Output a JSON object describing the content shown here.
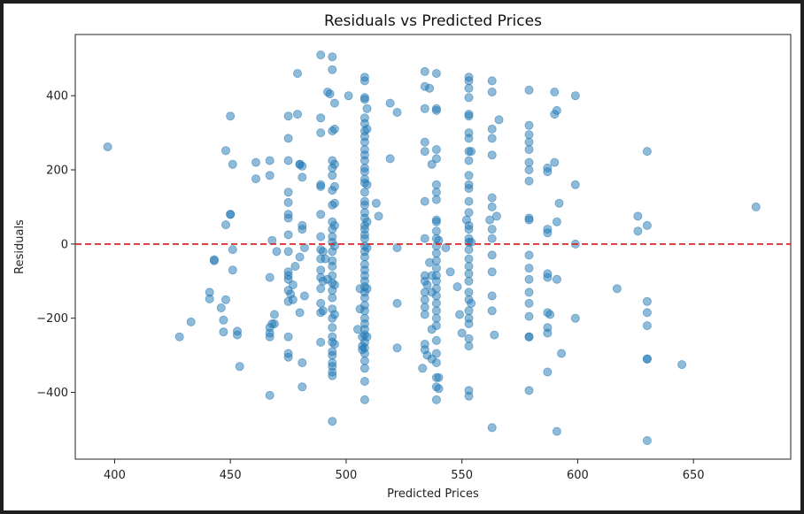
{
  "chart_data": {
    "type": "scatter",
    "title": "Residuals vs Predicted Prices",
    "xlabel": "Predicted Prices",
    "ylabel": "Residuals",
    "xlim": [
      383,
      692
    ],
    "ylim": [
      -580,
      565
    ],
    "xticks": [
      400,
      450,
      500,
      550,
      600,
      650
    ],
    "yticks": [
      -400,
      -200,
      0,
      200,
      400
    ],
    "grid": false,
    "reference_line": {
      "y": 0,
      "color": "#d62728",
      "style": "dashed"
    },
    "point_color": "#1f77b4",
    "points": [
      [
        397,
        262
      ],
      [
        428,
        -250
      ],
      [
        433,
        -210
      ],
      [
        441,
        -130
      ],
      [
        441,
        -148
      ],
      [
        443,
        -45
      ],
      [
        443,
        -42
      ],
      [
        446,
        -172
      ],
      [
        447,
        -237
      ],
      [
        447,
        -205
      ],
      [
        448,
        -150
      ],
      [
        448,
        52
      ],
      [
        448,
        252
      ],
      [
        450,
        80
      ],
      [
        450,
        80
      ],
      [
        450,
        345
      ],
      [
        451,
        215
      ],
      [
        451,
        -15
      ],
      [
        451,
        -70
      ],
      [
        453,
        -235
      ],
      [
        453,
        -245
      ],
      [
        454,
        -330
      ],
      [
        461,
        220
      ],
      [
        461,
        176
      ],
      [
        467,
        225
      ],
      [
        467,
        185
      ],
      [
        467,
        -90
      ],
      [
        467,
        -225
      ],
      [
        467,
        -240
      ],
      [
        467,
        -250
      ],
      [
        467,
        -408
      ],
      [
        468,
        -215
      ],
      [
        468,
        10
      ],
      [
        469,
        -190
      ],
      [
        469,
        -215
      ],
      [
        470,
        -20
      ],
      [
        475,
        345
      ],
      [
        475,
        285
      ],
      [
        475,
        225
      ],
      [
        475,
        140
      ],
      [
        475,
        112
      ],
      [
        475,
        80
      ],
      [
        475,
        70
      ],
      [
        475,
        25
      ],
      [
        475,
        -20
      ],
      [
        475,
        -75
      ],
      [
        475,
        -85
      ],
      [
        475,
        -95
      ],
      [
        475,
        -125
      ],
      [
        475,
        -155
      ],
      [
        475,
        -250
      ],
      [
        475,
        -295
      ],
      [
        475,
        -305
      ],
      [
        476,
        -135
      ],
      [
        477,
        -110
      ],
      [
        477,
        -150
      ],
      [
        478,
        -60
      ],
      [
        479,
        350
      ],
      [
        479,
        460
      ],
      [
        480,
        215
      ],
      [
        480,
        215
      ],
      [
        480,
        -35
      ],
      [
        480,
        -185
      ],
      [
        481,
        -320
      ],
      [
        481,
        -385
      ],
      [
        481,
        50
      ],
      [
        481,
        40
      ],
      [
        481,
        180
      ],
      [
        481,
        210
      ],
      [
        482,
        -10
      ],
      [
        482,
        -140
      ],
      [
        489,
        510
      ],
      [
        489,
        340
      ],
      [
        489,
        300
      ],
      [
        489,
        160
      ],
      [
        489,
        155
      ],
      [
        489,
        80
      ],
      [
        489,
        20
      ],
      [
        489,
        -15
      ],
      [
        489,
        -40
      ],
      [
        489,
        -70
      ],
      [
        489,
        -90
      ],
      [
        489,
        -120
      ],
      [
        489,
        -160
      ],
      [
        489,
        -185
      ],
      [
        489,
        -265
      ],
      [
        490,
        -180
      ],
      [
        490,
        -100
      ],
      [
        490,
        -20
      ],
      [
        491,
        -40
      ],
      [
        492,
        410
      ],
      [
        492,
        -95
      ],
      [
        493,
        405
      ],
      [
        494,
        305
      ],
      [
        494,
        225
      ],
      [
        494,
        205
      ],
      [
        494,
        185
      ],
      [
        494,
        145
      ],
      [
        494,
        105
      ],
      [
        494,
        60
      ],
      [
        494,
        40
      ],
      [
        494,
        20
      ],
      [
        494,
        5
      ],
      [
        494,
        -20
      ],
      [
        494,
        -45
      ],
      [
        494,
        -60
      ],
      [
        494,
        -85
      ],
      [
        494,
        -105
      ],
      [
        494,
        -125
      ],
      [
        494,
        -145
      ],
      [
        494,
        -175
      ],
      [
        494,
        -200
      ],
      [
        494,
        -225
      ],
      [
        494,
        -250
      ],
      [
        494,
        -265
      ],
      [
        494,
        -290
      ],
      [
        494,
        -300
      ],
      [
        494,
        -320
      ],
      [
        494,
        -330
      ],
      [
        494,
        -345
      ],
      [
        494,
        -355
      ],
      [
        494,
        -478
      ],
      [
        494,
        470
      ],
      [
        494,
        505
      ],
      [
        495,
        380
      ],
      [
        495,
        310
      ],
      [
        495,
        215
      ],
      [
        495,
        155
      ],
      [
        495,
        110
      ],
      [
        495,
        50
      ],
      [
        495,
        -5
      ],
      [
        495,
        -110
      ],
      [
        495,
        -190
      ],
      [
        495,
        -270
      ],
      [
        501,
        400
      ],
      [
        505,
        -230
      ],
      [
        506,
        -175
      ],
      [
        506,
        -120
      ],
      [
        507,
        -250
      ],
      [
        507,
        -275
      ],
      [
        507,
        -285
      ],
      [
        508,
        450
      ],
      [
        508,
        440
      ],
      [
        508,
        395
      ],
      [
        508,
        390
      ],
      [
        508,
        340
      ],
      [
        508,
        325
      ],
      [
        508,
        305
      ],
      [
        508,
        290
      ],
      [
        508,
        275
      ],
      [
        508,
        255
      ],
      [
        508,
        240
      ],
      [
        508,
        225
      ],
      [
        508,
        205
      ],
      [
        508,
        195
      ],
      [
        508,
        175
      ],
      [
        508,
        165
      ],
      [
        508,
        140
      ],
      [
        508,
        115
      ],
      [
        508,
        105
      ],
      [
        508,
        85
      ],
      [
        508,
        70
      ],
      [
        508,
        50
      ],
      [
        508,
        40
      ],
      [
        508,
        25
      ],
      [
        508,
        15
      ],
      [
        508,
        -5
      ],
      [
        508,
        -20
      ],
      [
        508,
        -35
      ],
      [
        508,
        -55
      ],
      [
        508,
        -70
      ],
      [
        508,
        -85
      ],
      [
        508,
        -100
      ],
      [
        508,
        -115
      ],
      [
        508,
        -130
      ],
      [
        508,
        -145
      ],
      [
        508,
        -165
      ],
      [
        508,
        -180
      ],
      [
        508,
        -200
      ],
      [
        508,
        -215
      ],
      [
        508,
        -230
      ],
      [
        508,
        -245
      ],
      [
        508,
        -265
      ],
      [
        508,
        -280
      ],
      [
        508,
        -295
      ],
      [
        508,
        -315
      ],
      [
        508,
        -335
      ],
      [
        508,
        -370
      ],
      [
        508,
        -420
      ],
      [
        509,
        365
      ],
      [
        509,
        310
      ],
      [
        509,
        160
      ],
      [
        509,
        60
      ],
      [
        509,
        -10
      ],
      [
        509,
        -120
      ],
      [
        509,
        -250
      ],
      [
        513,
        110
      ],
      [
        514,
        75
      ],
      [
        519,
        380
      ],
      [
        519,
        230
      ],
      [
        522,
        355
      ],
      [
        522,
        -10
      ],
      [
        522,
        -160
      ],
      [
        522,
        -280
      ],
      [
        533,
        -335
      ],
      [
        534,
        465
      ],
      [
        534,
        425
      ],
      [
        534,
        365
      ],
      [
        534,
        275
      ],
      [
        534,
        250
      ],
      [
        534,
        115
      ],
      [
        534,
        15
      ],
      [
        534,
        -85
      ],
      [
        534,
        -100
      ],
      [
        534,
        -130
      ],
      [
        534,
        -150
      ],
      [
        534,
        -170
      ],
      [
        534,
        -190
      ],
      [
        534,
        -270
      ],
      [
        534,
        -285
      ],
      [
        535,
        -110
      ],
      [
        535,
        -300
      ],
      [
        536,
        420
      ],
      [
        536,
        -50
      ],
      [
        537,
        215
      ],
      [
        537,
        -85
      ],
      [
        537,
        -130
      ],
      [
        537,
        -230
      ],
      [
        537,
        -310
      ],
      [
        539,
        460
      ],
      [
        539,
        360
      ],
      [
        539,
        365
      ],
      [
        539,
        255
      ],
      [
        539,
        230
      ],
      [
        539,
        160
      ],
      [
        539,
        140
      ],
      [
        539,
        120
      ],
      [
        539,
        65
      ],
      [
        539,
        60
      ],
      [
        539,
        35
      ],
      [
        539,
        15
      ],
      [
        539,
        -5
      ],
      [
        539,
        -25
      ],
      [
        539,
        -45
      ],
      [
        539,
        -65
      ],
      [
        539,
        -85
      ],
      [
        539,
        -100
      ],
      [
        539,
        -120
      ],
      [
        539,
        -140
      ],
      [
        539,
        -160
      ],
      [
        539,
        -180
      ],
      [
        539,
        -200
      ],
      [
        539,
        -220
      ],
      [
        539,
        -260
      ],
      [
        539,
        -295
      ],
      [
        539,
        -320
      ],
      [
        539,
        -360
      ],
      [
        539,
        -385
      ],
      [
        539,
        -420
      ],
      [
        540,
        10
      ],
      [
        540,
        -390
      ],
      [
        540,
        -360
      ],
      [
        543,
        -10
      ],
      [
        545,
        -75
      ],
      [
        548,
        -115
      ],
      [
        549,
        -190
      ],
      [
        550,
        -240
      ],
      [
        552,
        65
      ],
      [
        553,
        450
      ],
      [
        553,
        440
      ],
      [
        553,
        420
      ],
      [
        553,
        395
      ],
      [
        553,
        350
      ],
      [
        553,
        345
      ],
      [
        553,
        300
      ],
      [
        553,
        285
      ],
      [
        553,
        250
      ],
      [
        553,
        225
      ],
      [
        553,
        185
      ],
      [
        553,
        160
      ],
      [
        553,
        150
      ],
      [
        553,
        115
      ],
      [
        553,
        85
      ],
      [
        553,
        50
      ],
      [
        553,
        40
      ],
      [
        553,
        15
      ],
      [
        553,
        5
      ],
      [
        553,
        -15
      ],
      [
        553,
        -40
      ],
      [
        553,
        -60
      ],
      [
        553,
        -80
      ],
      [
        553,
        -100
      ],
      [
        553,
        -130
      ],
      [
        553,
        -150
      ],
      [
        553,
        -180
      ],
      [
        553,
        -200
      ],
      [
        553,
        -215
      ],
      [
        553,
        -255
      ],
      [
        553,
        -275
      ],
      [
        553,
        -395
      ],
      [
        553,
        -410
      ],
      [
        554,
        -160
      ],
      [
        554,
        250
      ],
      [
        554,
        5
      ],
      [
        562,
        65
      ],
      [
        563,
        440
      ],
      [
        563,
        410
      ],
      [
        563,
        310
      ],
      [
        563,
        285
      ],
      [
        563,
        240
      ],
      [
        563,
        125
      ],
      [
        563,
        100
      ],
      [
        563,
        40
      ],
      [
        563,
        15
      ],
      [
        563,
        -30
      ],
      [
        563,
        -75
      ],
      [
        563,
        -140
      ],
      [
        563,
        -180
      ],
      [
        563,
        -495
      ],
      [
        564,
        -245
      ],
      [
        565,
        75
      ],
      [
        566,
        335
      ],
      [
        579,
        415
      ],
      [
        579,
        320
      ],
      [
        579,
        295
      ],
      [
        579,
        275
      ],
      [
        579,
        255
      ],
      [
        579,
        220
      ],
      [
        579,
        200
      ],
      [
        579,
        170
      ],
      [
        579,
        70
      ],
      [
        579,
        65
      ],
      [
        579,
        -30
      ],
      [
        579,
        -65
      ],
      [
        579,
        -95
      ],
      [
        579,
        -130
      ],
      [
        579,
        -160
      ],
      [
        579,
        -195
      ],
      [
        579,
        -250
      ],
      [
        579,
        -250
      ],
      [
        579,
        -395
      ],
      [
        587,
        205
      ],
      [
        587,
        195
      ],
      [
        587,
        40
      ],
      [
        587,
        30
      ],
      [
        587,
        -80
      ],
      [
        587,
        -90
      ],
      [
        587,
        -185
      ],
      [
        587,
        -225
      ],
      [
        587,
        -240
      ],
      [
        587,
        -345
      ],
      [
        588,
        -190
      ],
      [
        590,
        410
      ],
      [
        590,
        350
      ],
      [
        590,
        220
      ],
      [
        591,
        360
      ],
      [
        591,
        60
      ],
      [
        591,
        -95
      ],
      [
        591,
        -505
      ],
      [
        592,
        110
      ],
      [
        593,
        -295
      ],
      [
        599,
        400
      ],
      [
        599,
        160
      ],
      [
        599,
        0
      ],
      [
        599,
        -200
      ],
      [
        617,
        -120
      ],
      [
        626,
        75
      ],
      [
        626,
        35
      ],
      [
        630,
        250
      ],
      [
        630,
        50
      ],
      [
        630,
        -155
      ],
      [
        630,
        -185
      ],
      [
        630,
        -220
      ],
      [
        630,
        -310
      ],
      [
        630,
        -310
      ],
      [
        630,
        -530
      ],
      [
        645,
        -325
      ],
      [
        677,
        100
      ]
    ]
  }
}
